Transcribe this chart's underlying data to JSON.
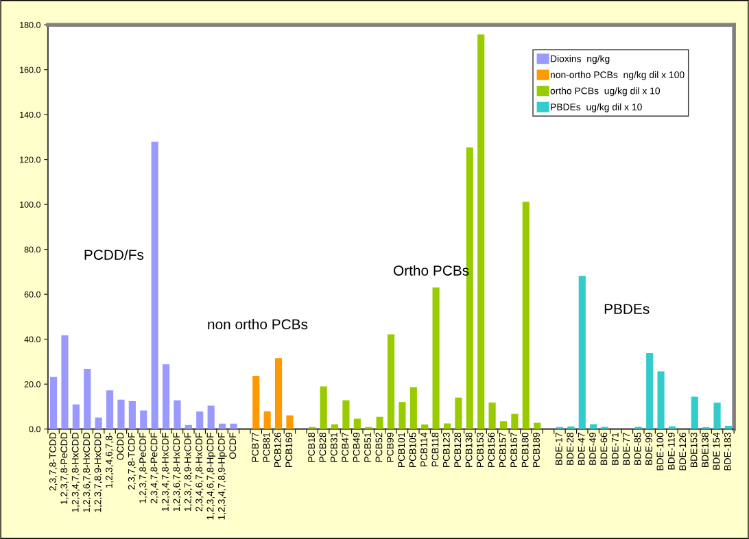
{
  "chart_data": {
    "type": "bar",
    "categories": [
      "2,3,7,8-TCDD",
      "1,2,3,7,8-PeCDD",
      "1,2,3,4,7,8-HxCDD",
      "1,2,3,6,7,8-HxCDD",
      "1,2,3,7,8,9-HxCDD",
      "1,2,3,4,6,7,8-",
      "OCDD",
      "2,3,7,8-TCDF",
      "1,2,3,7,8-PeCDF",
      "2,3,4,7,8-PeCDF",
      "1,2,3,4,7,8-HxCDF",
      "1,2,3,6,7,8-HxCDF",
      "1,2,3,7,8,9-HxCDF",
      "2,3,4,6,7,8-HxCDF",
      "1,2,3,4,6,7,8-HpCDF",
      "1,2,3,4,7,8,9-HpCDF",
      "OCDF",
      null,
      "PCB77",
      "PCB81",
      "PCB126",
      "PCB169",
      null,
      "PCB18",
      "PCB28",
      "PCB31",
      "PCB47",
      "PCB49",
      "PCB51",
      "PCB52",
      "PCB99",
      "PCB101",
      "PCB105",
      "PCB114",
      "PCB118",
      "PCB123",
      "PCB128",
      "PCB138",
      "PCB153",
      "PCB156",
      "PCB157",
      "PCB167",
      "PCB180",
      "PCB189",
      null,
      "BDE-17",
      "BDE-28",
      "BDE-47",
      "BDE-49",
      "BDE-66",
      "BDE-71",
      "BDE-77",
      "BDE-85",
      "BDE-99",
      "BDE-100",
      "BDE-119",
      "BDE-126",
      "BDE153",
      "BDE138",
      "BDE 154",
      "BDE-183"
    ],
    "series": [
      {
        "name": "Dioxins  ng/kg",
        "color": "#9999ff",
        "values": [
          23.2,
          41.7,
          11.0,
          26.8,
          5.2,
          17.2,
          13.1,
          12.4,
          8.3,
          127.9,
          28.8,
          12.8,
          1.8,
          7.8,
          10.4,
          2.4,
          2.4,
          null,
          null,
          null,
          null,
          null,
          null,
          null,
          null,
          null,
          null,
          null,
          null,
          null,
          null,
          null,
          null,
          null,
          null,
          null,
          null,
          null,
          null,
          null,
          null,
          null,
          null,
          null,
          null,
          null,
          null,
          null,
          null,
          null,
          null,
          null,
          null,
          null,
          null,
          null,
          null,
          null,
          null,
          null,
          null
        ]
      },
      {
        "name": "non-ortho PCBs  ng/kg dil x 100",
        "color": "#ff9900",
        "values": [
          null,
          null,
          null,
          null,
          null,
          null,
          null,
          null,
          null,
          null,
          null,
          null,
          null,
          null,
          null,
          null,
          null,
          null,
          23.7,
          7.9,
          31.6,
          6.1,
          null,
          null,
          null,
          null,
          null,
          null,
          null,
          null,
          null,
          null,
          null,
          null,
          null,
          null,
          null,
          null,
          null,
          null,
          null,
          null,
          null,
          null,
          null,
          null,
          null,
          null,
          null,
          null,
          null,
          null,
          null,
          null,
          null,
          null,
          null,
          null,
          null,
          null,
          null
        ]
      },
      {
        "name": "ortho PCBs  ug/kg dil x 10",
        "color": "#99cc00",
        "values": [
          null,
          null,
          null,
          null,
          null,
          null,
          null,
          null,
          null,
          null,
          null,
          null,
          null,
          null,
          null,
          null,
          null,
          null,
          null,
          null,
          null,
          null,
          null,
          0.9,
          19.0,
          2.1,
          12.8,
          4.6,
          0.9,
          5.5,
          42.2,
          12.0,
          18.7,
          2.0,
          63.0,
          2.5,
          14.0,
          125.4,
          175.7,
          11.8,
          3.5,
          6.8,
          101.2,
          2.8,
          null,
          null,
          null,
          null,
          null,
          null,
          null,
          null,
          null,
          null,
          null,
          null,
          null,
          null,
          null,
          null,
          null
        ]
      },
      {
        "name": "PBDEs  ug/kg dil x 10",
        "color": "#33cccc",
        "values": [
          null,
          null,
          null,
          null,
          null,
          null,
          null,
          null,
          null,
          null,
          null,
          null,
          null,
          null,
          null,
          null,
          null,
          null,
          null,
          null,
          null,
          null,
          null,
          null,
          null,
          null,
          null,
          null,
          null,
          null,
          null,
          null,
          null,
          null,
          null,
          null,
          null,
          null,
          null,
          null,
          null,
          null,
          null,
          null,
          null,
          0.9,
          1.2,
          68.2,
          2.2,
          1.0,
          0,
          0,
          1.0,
          33.8,
          25.7,
          1.2,
          0,
          14.4,
          0.8,
          11.7,
          1.4
        ]
      }
    ],
    "ylim": [
      0,
      180
    ],
    "yticks": [
      {
        "value": 0,
        "label": "0.0"
      },
      {
        "value": 20,
        "label": "20.0"
      },
      {
        "value": 40,
        "label": "40.0"
      },
      {
        "value": 60,
        "label": "60.0"
      },
      {
        "value": 80,
        "label": "80.0"
      },
      {
        "value": 100,
        "label": "100.0"
      },
      {
        "value": 120,
        "label": "120.0"
      },
      {
        "value": 140,
        "label": "140.0"
      },
      {
        "value": 160,
        "label": "160.0"
      },
      {
        "value": 180,
        "label": "180.0"
      }
    ],
    "annotations": [
      "PCDD/Fs",
      "non ortho PCBs",
      "Ortho PCBs",
      "PBDEs"
    ],
    "grid": false,
    "legend": "top right"
  }
}
